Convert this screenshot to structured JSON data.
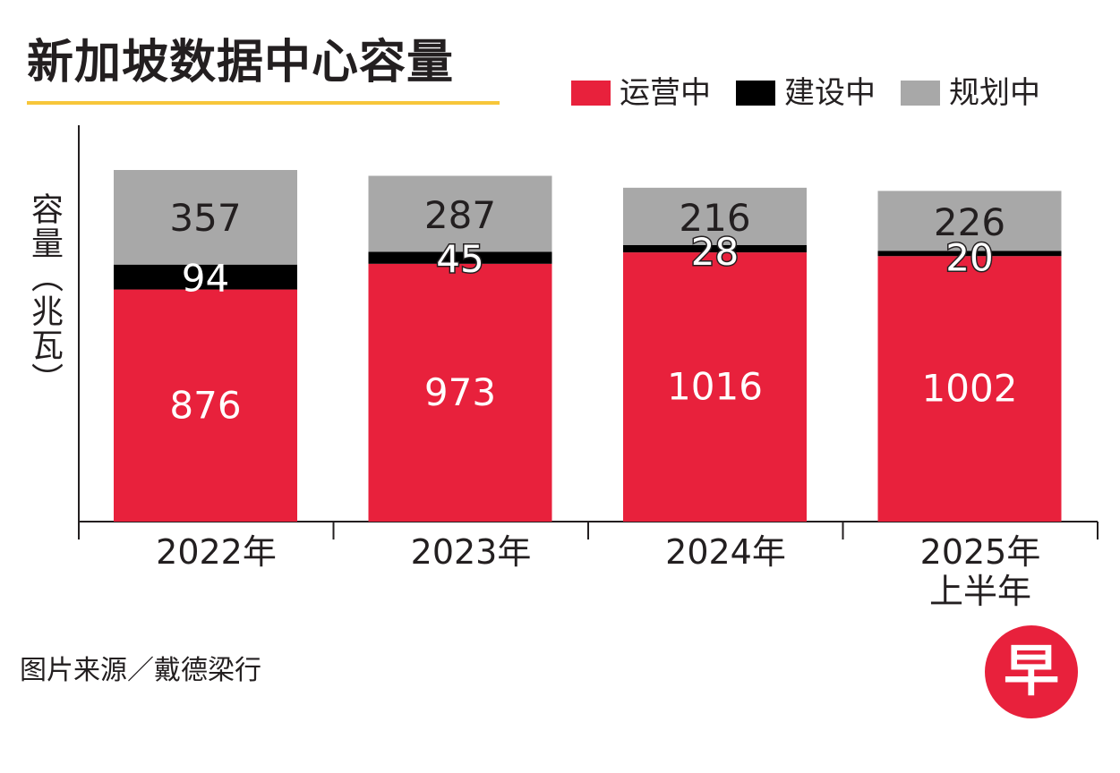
{
  "title": "新加坡数据中心容量",
  "legend": [
    {
      "label": "运营中",
      "color": "#e8213c"
    },
    {
      "label": "建设中",
      "color": "#000000"
    },
    {
      "label": "规划中",
      "color": "#a8a8a8"
    }
  ],
  "source": "图片来源／戴德梁行",
  "logo": {
    "char": "早",
    "color": "#e8213c"
  },
  "chart_data": {
    "type": "bar",
    "stacked": true,
    "title": "新加坡数据中心容量",
    "ylabel": "容量（兆瓦）",
    "xlabel": "",
    "ylim": [
      0,
      1500
    ],
    "categories": [
      {
        "line1": "2022年",
        "line2": ""
      },
      {
        "line1": "2023年",
        "line2": ""
      },
      {
        "line1": "2024年",
        "line2": ""
      },
      {
        "line1": "2025年",
        "line2": "上半年"
      }
    ],
    "series": [
      {
        "name": "运营中",
        "color": "#e8213c",
        "label_color": "#ffffff",
        "values": [
          876,
          973,
          1016,
          1002
        ]
      },
      {
        "name": "建设中",
        "color": "#000000",
        "label_color": "#ffffff",
        "values": [
          94,
          45,
          28,
          20
        ]
      },
      {
        "name": "规划中",
        "color": "#a8a8a8",
        "label_color": "#231f20",
        "values": [
          357,
          287,
          216,
          226
        ]
      }
    ]
  }
}
